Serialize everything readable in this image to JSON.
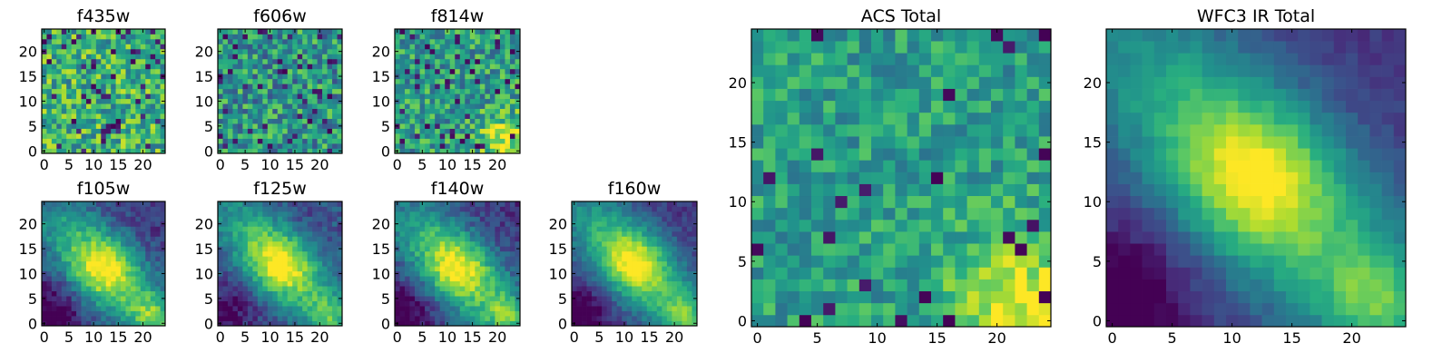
{
  "figure": {
    "palette": [
      "#440154",
      "#472d7b",
      "#3b528b",
      "#2c728e",
      "#21918c",
      "#28ae80",
      "#5ec962",
      "#addc30",
      "#fde725"
    ]
  },
  "chart_data": [
    {
      "type": "heatmap",
      "title": "f435w",
      "grid_size": 25,
      "xticks": [
        "0",
        "5",
        "10",
        "15",
        "20"
      ],
      "yticks": [
        "0",
        "5",
        "10",
        "15",
        "20"
      ],
      "xlim": [
        0,
        24
      ],
      "ylim": [
        0,
        24
      ],
      "field": {
        "kind": "noisy",
        "base": 0.64,
        "noise": 0.55,
        "low": 0.08,
        "lowvalue": 0.15
      }
    },
    {
      "type": "heatmap",
      "title": "f606w",
      "grid_size": 25,
      "xticks": [
        "0",
        "5",
        "10",
        "15",
        "20"
      ],
      "yticks": [
        "0",
        "5",
        "10",
        "15",
        "20"
      ],
      "xlim": [
        0,
        24
      ],
      "ylim": [
        0,
        24
      ],
      "field": {
        "kind": "noisy",
        "base": 0.52,
        "noise": 0.55,
        "low": 0.07,
        "lowvalue": 0.12
      }
    },
    {
      "type": "heatmap",
      "title": "f814w",
      "grid_size": 25,
      "xticks": [
        "0",
        "5",
        "10",
        "15",
        "20"
      ],
      "yticks": [
        "0",
        "5",
        "10",
        "15",
        "20"
      ],
      "xlim": [
        0,
        24
      ],
      "ylim": [
        0,
        24
      ],
      "field": {
        "kind": "noisy",
        "base": 0.55,
        "noise": 0.5,
        "low": 0.06,
        "lowvalue": 0.1,
        "corner": 0.35
      }
    },
    {
      "type": "heatmap",
      "title": "f105w",
      "grid_size": 25,
      "xticks": [
        "0",
        "5",
        "10",
        "15",
        "20"
      ],
      "yticks": [
        "0",
        "5",
        "10",
        "15",
        "20"
      ],
      "xlim": [
        0,
        24
      ],
      "ylim": [
        0,
        24
      ],
      "field": {
        "kind": "diagonal",
        "center": [
          12,
          11
        ],
        "noise": 0.22,
        "corner": 0.3
      }
    },
    {
      "type": "heatmap",
      "title": "f125w",
      "grid_size": 25,
      "xticks": [
        "0",
        "5",
        "10",
        "15",
        "20"
      ],
      "yticks": [
        "0",
        "5",
        "10",
        "15",
        "20"
      ],
      "xlim": [
        0,
        24
      ],
      "ylim": [
        0,
        24
      ],
      "field": {
        "kind": "diagonal",
        "center": [
          12,
          12
        ],
        "noise": 0.2,
        "corner": 0.25,
        "floor": 0.2
      }
    },
    {
      "type": "heatmap",
      "title": "f140w",
      "grid_size": 25,
      "xticks": [
        "0",
        "5",
        "10",
        "15",
        "20"
      ],
      "yticks": [
        "0",
        "5",
        "10",
        "15",
        "20"
      ],
      "xlim": [
        0,
        24
      ],
      "ylim": [
        0,
        24
      ],
      "field": {
        "kind": "diagonal",
        "center": [
          12,
          11
        ],
        "noise": 0.22,
        "corner": 0.3
      }
    },
    {
      "type": "heatmap",
      "title": "f160w",
      "grid_size": 25,
      "xticks": [
        "0",
        "5",
        "10",
        "15",
        "20"
      ],
      "yticks": [
        "0",
        "5",
        "10",
        "15",
        "20"
      ],
      "xlim": [
        0,
        24
      ],
      "ylim": [
        0,
        24
      ],
      "field": {
        "kind": "diagonal",
        "center": [
          12,
          12
        ],
        "noise": 0.16,
        "corner": 0.3
      }
    },
    {
      "type": "heatmap",
      "title": "ACS Total",
      "grid_size": 25,
      "xticks": [
        "0",
        "5",
        "10",
        "15",
        "20"
      ],
      "yticks": [
        "0",
        "5",
        "10",
        "15",
        "20"
      ],
      "xlim": [
        0,
        24
      ],
      "ylim": [
        0,
        24
      ],
      "field": {
        "kind": "noisy",
        "base": 0.56,
        "noise": 0.36,
        "low": 0.05,
        "lowvalue": 0.08,
        "corner": 0.4
      }
    },
    {
      "type": "heatmap",
      "title": "WFC3 IR Total",
      "grid_size": 25,
      "xticks": [
        "0",
        "5",
        "10",
        "15",
        "20"
      ],
      "yticks": [
        "0",
        "5",
        "10",
        "15",
        "20"
      ],
      "xlim": [
        0,
        24
      ],
      "ylim": [
        0,
        24
      ],
      "field": {
        "kind": "diagonal",
        "center": [
          12,
          12
        ],
        "noise": 0.1,
        "corner": 0.3
      }
    }
  ]
}
